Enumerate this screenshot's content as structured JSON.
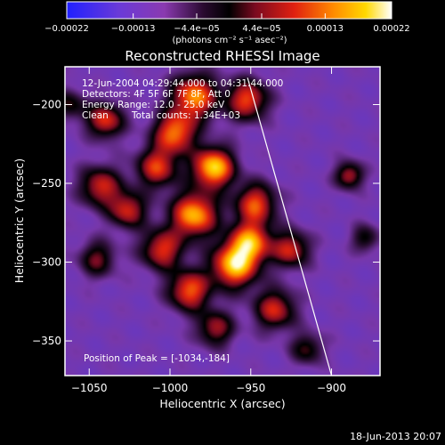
{
  "chart_data": {
    "type": "heatmap",
    "title": "Reconstructed RHESSI Image",
    "xlabel": "Heliocentric X (arcsec)",
    "ylabel": "Heliocentric Y (arcsec)",
    "xlim": [
      -1065,
      -870
    ],
    "ylim": [
      -372,
      -176
    ],
    "xticks": [
      {
        "value": -1050,
        "label": "−1050"
      },
      {
        "value": -1000,
        "label": "−1000"
      },
      {
        "value": -950,
        "label": "−950"
      },
      {
        "value": -900,
        "label": "−900"
      }
    ],
    "yticks": [
      {
        "value": -200,
        "label": "−200"
      },
      {
        "value": -250,
        "label": "−250"
      },
      {
        "value": -300,
        "label": "−300"
      },
      {
        "value": -350,
        "label": "−350"
      }
    ],
    "colorbar": {
      "min": -0.00022,
      "max": 0.00022,
      "ticks": [
        {
          "value": -0.00022,
          "label": "−0.00022"
        },
        {
          "value": -0.00013,
          "label": "−0.00013"
        },
        {
          "value": -4.4e-05,
          "label": "−4.4e−05"
        },
        {
          "value": 4.4e-05,
          "label": "4.4e−05"
        },
        {
          "value": 0.00013,
          "label": "0.00013"
        },
        {
          "value": 0.00022,
          "label": "0.00022"
        }
      ],
      "units_label": "(photons cm⁻² s⁻¹ asec⁻²)",
      "colormap": "blue-purple-red-orange-yellow-white"
    },
    "annotations": {
      "time_range": "12-Jun-2004 04:29:44.000 to 04:31:44.000",
      "detectors": "Detectors: 4F 5F 6F 7F 8F, Att 0",
      "energy_range": "Energy Range: 12.0 - 25.0 keV",
      "method": "Clean",
      "total_counts": "Total counts: 1.34E+03",
      "peak": "Position of Peak = [-1034,-184]"
    },
    "limb_line": {
      "x": [
        -952,
        -900
      ],
      "y": [
        -183,
        -372
      ]
    },
    "sources": [
      {
        "x": -985,
        "y": -195,
        "amp": 1.0,
        "sigma": 10
      },
      {
        "x": -952,
        "y": -197,
        "amp": 0.85,
        "sigma": 9
      },
      {
        "x": -1040,
        "y": -210,
        "amp": 0.8,
        "sigma": 8
      },
      {
        "x": -997,
        "y": -218,
        "amp": 0.95,
        "sigma": 9
      },
      {
        "x": -973,
        "y": -240,
        "amp": 1.2,
        "sigma": 9
      },
      {
        "x": -1008,
        "y": -240,
        "amp": 0.8,
        "sigma": 9
      },
      {
        "x": -1043,
        "y": -252,
        "amp": 0.75,
        "sigma": 9
      },
      {
        "x": -1026,
        "y": -267,
        "amp": 0.75,
        "sigma": 8
      },
      {
        "x": -947,
        "y": -263,
        "amp": 0.85,
        "sigma": 9
      },
      {
        "x": -985,
        "y": -270,
        "amp": 1.1,
        "sigma": 10
      },
      {
        "x": -950,
        "y": -287,
        "amp": 0.95,
        "sigma": 9
      },
      {
        "x": -1005,
        "y": -292,
        "amp": 0.8,
        "sigma": 9
      },
      {
        "x": -960,
        "y": -302,
        "amp": 1.15,
        "sigma": 10
      },
      {
        "x": -925,
        "y": -292,
        "amp": 0.75,
        "sigma": 8
      },
      {
        "x": -988,
        "y": -318,
        "amp": 0.9,
        "sigma": 9
      },
      {
        "x": -1045,
        "y": -298,
        "amp": 0.55,
        "sigma": 8
      },
      {
        "x": -935,
        "y": -330,
        "amp": 0.75,
        "sigma": 9
      },
      {
        "x": -972,
        "y": -342,
        "amp": 0.65,
        "sigma": 8
      },
      {
        "x": -889,
        "y": -245,
        "amp": 0.7,
        "sigma": 6
      },
      {
        "x": -879,
        "y": -285,
        "amp": 0.45,
        "sigma": 6
      },
      {
        "x": -1062,
        "y": -200,
        "amp": 0.45,
        "sigma": 7
      },
      {
        "x": -915,
        "y": -355,
        "amp": 0.5,
        "sigma": 7
      }
    ]
  },
  "footer": {
    "timestamp": "18-Jun-2013 20:07"
  }
}
